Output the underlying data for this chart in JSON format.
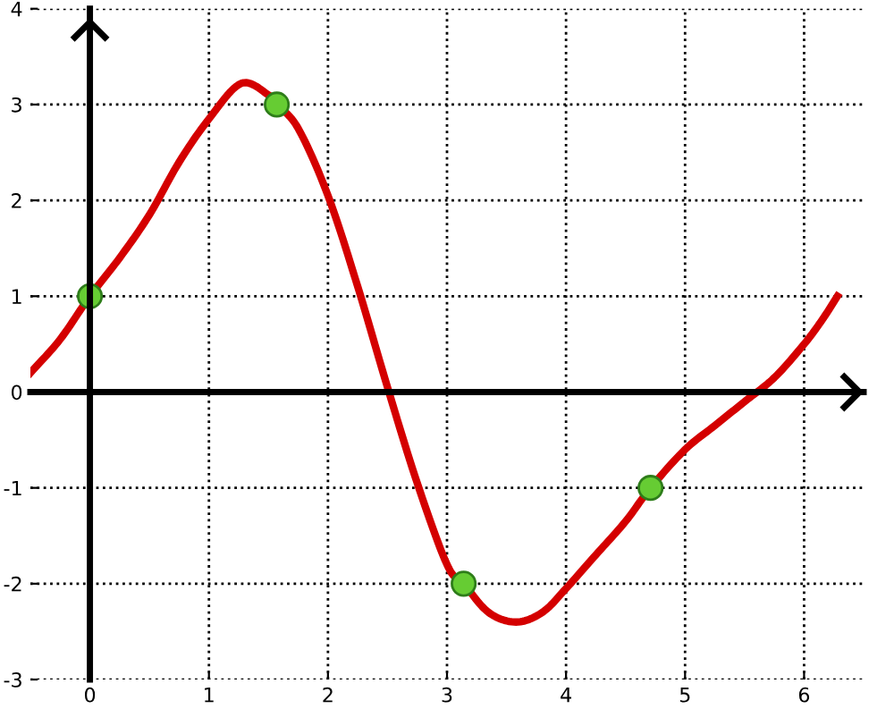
{
  "chart_data": {
    "type": "line",
    "xlim": [
      -0.5,
      6.5
    ],
    "ylim": [
      -3,
      4
    ],
    "xticks": [
      0,
      1,
      2,
      3,
      4,
      5,
      6
    ],
    "yticks": [
      -3,
      -2,
      -1,
      0,
      1,
      2,
      3,
      4
    ],
    "grid": true,
    "tick_labels": true,
    "series": [
      {
        "color": "#d40000",
        "marker": "none",
        "x": [
          -0.5,
          -0.25,
          0,
          0.25,
          0.5,
          0.75,
          1,
          1.27,
          1.5,
          1.57,
          1.75,
          2,
          2.25,
          2.5,
          2.75,
          3,
          3.14,
          3.35,
          3.58,
          3.8,
          4,
          4.25,
          4.5,
          4.71,
          5,
          5.25,
          5.5,
          5.75,
          6,
          6.15,
          6.28
        ],
        "values": [
          0.2,
          0.55,
          1,
          1.4,
          1.85,
          2.4,
          2.85,
          3.22,
          3.1,
          3,
          2.75,
          2.05,
          1.1,
          0.05,
          -0.95,
          -1.8,
          -2,
          -2.3,
          -2.4,
          -2.3,
          -2.05,
          -1.7,
          -1.35,
          -1,
          -0.6,
          -0.35,
          -0.1,
          0.15,
          0.5,
          0.75,
          1
        ]
      },
      {
        "type": "scatter",
        "color": "#66cc33",
        "marker": "circle",
        "x": [
          0,
          1.57,
          3.14,
          4.71
        ],
        "values": [
          1,
          3,
          -2,
          -1
        ]
      }
    ]
  }
}
